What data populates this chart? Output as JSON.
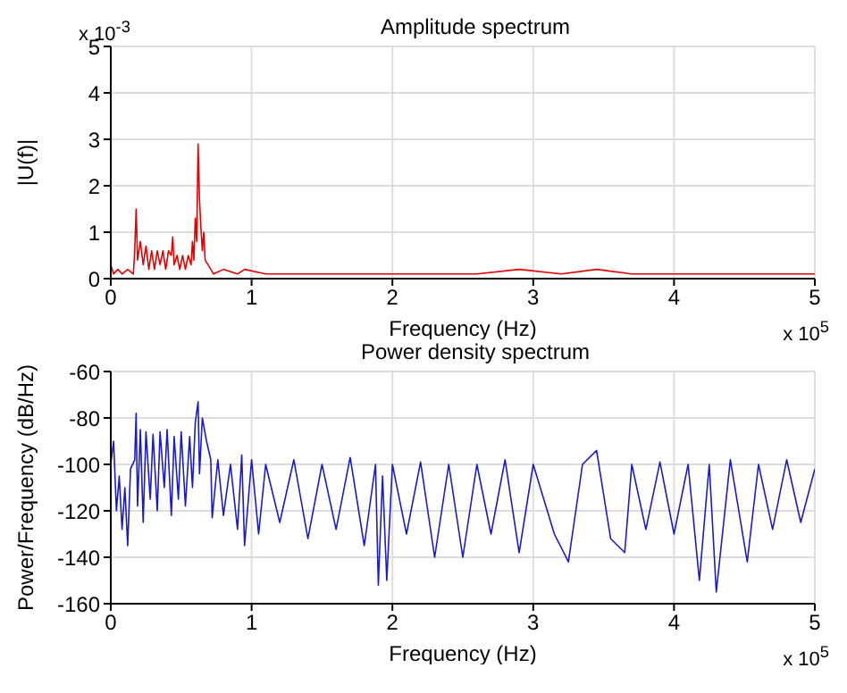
{
  "chart_data": [
    {
      "type": "line",
      "title": "Amplitude spectrum",
      "xlabel": "Frequency (Hz)",
      "ylabel": "|U(f)|",
      "annotations": [
        "x 10$^{-3}$",
        "x 10$^{5}$"
      ],
      "grid": true,
      "marker": "none",
      "xlim": [
        0,
        5
      ],
      "xticks": [
        0,
        1,
        2,
        3,
        4,
        5
      ],
      "ylim": [
        0,
        5
      ],
      "yticks": [
        0,
        1,
        2,
        3,
        4,
        5
      ],
      "series": [
        {
          "color": "#e60000",
          "x": [
            0,
            0.02,
            0.05,
            0.08,
            0.12,
            0.16,
            0.17,
            0.18,
            0.19,
            0.21,
            0.23,
            0.25,
            0.27,
            0.29,
            0.31,
            0.33,
            0.35,
            0.37,
            0.39,
            0.41,
            0.43,
            0.44,
            0.45,
            0.47,
            0.49,
            0.51,
            0.53,
            0.55,
            0.57,
            0.58,
            0.59,
            0.6,
            0.61,
            0.62,
            0.63,
            0.64,
            0.65,
            0.66,
            0.67,
            0.69,
            0.71,
            0.73,
            0.8,
            0.9,
            0.95,
            1.1,
            1.3,
            1.5,
            1.7,
            2,
            2.3,
            2.6,
            2.9,
            3.2,
            3.45,
            3.7,
            4,
            4.3,
            4.6,
            5
          ],
          "values": [
            0.3,
            0.1,
            0.2,
            0.1,
            0.2,
            0.1,
            0.6,
            1.5,
            0.4,
            0.8,
            0.3,
            0.7,
            0.2,
            0.6,
            0.2,
            0.6,
            0.3,
            0.6,
            0.2,
            0.6,
            0.5,
            0.9,
            0.3,
            0.5,
            0.2,
            0.5,
            0.2,
            0.5,
            0.3,
            0.8,
            0.4,
            1.3,
            0.8,
            2.9,
            1.7,
            1.1,
            0.6,
            1,
            0.4,
            0.3,
            0.2,
            0.1,
            0.2,
            0.1,
            0.2,
            0.1,
            0.1,
            0.1,
            0.1,
            0.1,
            0.1,
            0.1,
            0.2,
            0.1,
            0.2,
            0.1,
            0.1,
            0.1,
            0.1,
            0.1
          ]
        }
      ]
    },
    {
      "type": "line",
      "title": "Power density spectrum",
      "xlabel": "Frequency (Hz)",
      "ylabel": "Power/Frequency (dB/Hz)",
      "annotations": [
        "x 10$^{5}$"
      ],
      "grid": true,
      "marker": "none",
      "xlim": [
        0,
        5
      ],
      "xticks": [
        0,
        1,
        2,
        3,
        4,
        5
      ],
      "ylim": [
        -160,
        -60
      ],
      "yticks": [
        -160,
        -140,
        -120,
        -100,
        -80,
        -60
      ],
      "series": [
        {
          "color": "#1a1acc",
          "x": [
            0,
            0.02,
            0.04,
            0.06,
            0.08,
            0.1,
            0.12,
            0.14,
            0.17,
            0.18,
            0.19,
            0.21,
            0.23,
            0.25,
            0.28,
            0.3,
            0.33,
            0.35,
            0.38,
            0.4,
            0.43,
            0.45,
            0.48,
            0.5,
            0.53,
            0.56,
            0.58,
            0.6,
            0.62,
            0.63,
            0.65,
            0.68,
            0.71,
            0.72,
            0.76,
            0.8,
            0.85,
            0.9,
            0.93,
            0.95,
            1,
            1.05,
            1.1,
            1.2,
            1.3,
            1.4,
            1.5,
            1.6,
            1.7,
            1.8,
            1.88,
            1.9,
            1.93,
            1.96,
            2,
            2.1,
            2.2,
            2.3,
            2.4,
            2.5,
            2.6,
            2.7,
            2.8,
            2.9,
            3,
            3.15,
            3.25,
            3.35,
            3.45,
            3.55,
            3.65,
            3.7,
            3.8,
            3.9,
            4,
            4.1,
            4.18,
            4.25,
            4.3,
            4.4,
            4.52,
            4.6,
            4.7,
            4.8,
            4.9,
            5
          ],
          "values": [
            -100,
            -90,
            -120,
            -105,
            -128,
            -110,
            -135,
            -102,
            -98,
            -78,
            -118,
            -85,
            -125,
            -86,
            -115,
            -87,
            -120,
            -86,
            -110,
            -85,
            -122,
            -88,
            -115,
            -86,
            -118,
            -88,
            -110,
            -82,
            -73,
            -104,
            -80,
            -90,
            -98,
            -123,
            -98,
            -122,
            -100,
            -128,
            -96,
            -135,
            -98,
            -130,
            -100,
            -125,
            -98,
            -132,
            -100,
            -128,
            -97,
            -135,
            -100,
            -152,
            -105,
            -150,
            -100,
            -130,
            -99,
            -140,
            -100,
            -140,
            -100,
            -130,
            -98,
            -138,
            -100,
            -130,
            -142,
            -100,
            -94,
            -132,
            -138,
            -100,
            -128,
            -99,
            -130,
            -100,
            -150,
            -100,
            -155,
            -98,
            -142,
            -100,
            -128,
            -98,
            -125,
            -102
          ]
        }
      ]
    }
  ]
}
